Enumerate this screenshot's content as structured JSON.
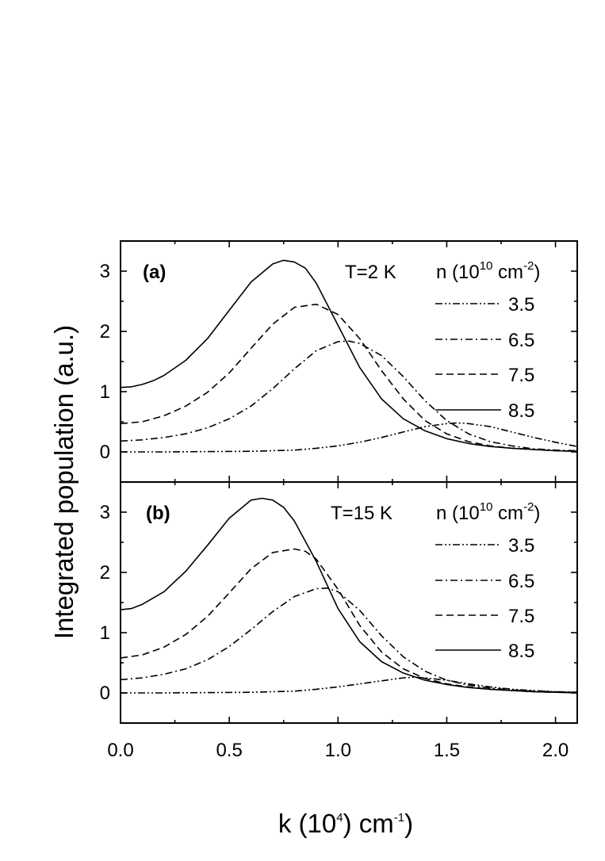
{
  "chart_data": [
    {
      "type": "line",
      "panel_label": "(a)",
      "temperature_label": "T=2 K",
      "legend_title": {
        "base": "n (10",
        "exp1": "10",
        "mid": " cm",
        "exp2": "-2",
        "end": ")"
      },
      "xlim": [
        0.0,
        2.1
      ],
      "ylim": [
        -0.5,
        3.5
      ],
      "series": [
        {
          "name": "3.5",
          "style": "dash-dot-dot",
          "x": [
            0.0,
            0.2,
            0.4,
            0.6,
            0.8,
            0.9,
            1.0,
            1.1,
            1.2,
            1.3,
            1.4,
            1.5,
            1.55,
            1.6,
            1.7,
            1.8,
            1.9,
            2.0,
            2.1
          ],
          "y": [
            0.0,
            0.0,
            0.005,
            0.01,
            0.03,
            0.06,
            0.1,
            0.16,
            0.24,
            0.33,
            0.42,
            0.47,
            0.48,
            0.47,
            0.42,
            0.33,
            0.24,
            0.16,
            0.09
          ]
        },
        {
          "name": "6.5",
          "style": "dash-dot",
          "x": [
            0.0,
            0.1,
            0.2,
            0.3,
            0.4,
            0.5,
            0.6,
            0.7,
            0.8,
            0.9,
            1.0,
            1.05,
            1.1,
            1.2,
            1.3,
            1.4,
            1.5,
            1.6,
            1.7,
            1.8,
            1.9,
            2.0,
            2.1
          ],
          "y": [
            0.18,
            0.2,
            0.24,
            0.3,
            0.4,
            0.55,
            0.76,
            1.05,
            1.38,
            1.68,
            1.83,
            1.84,
            1.8,
            1.6,
            1.25,
            0.85,
            0.52,
            0.3,
            0.17,
            0.1,
            0.05,
            0.03,
            0.02
          ]
        },
        {
          "name": "7.5",
          "style": "dash",
          "x": [
            0.0,
            0.1,
            0.2,
            0.3,
            0.4,
            0.5,
            0.6,
            0.7,
            0.8,
            0.9,
            1.0,
            1.1,
            1.2,
            1.3,
            1.4,
            1.5,
            1.6,
            1.7,
            1.8,
            1.9,
            2.0,
            2.1
          ],
          "y": [
            0.47,
            0.5,
            0.6,
            0.76,
            0.99,
            1.31,
            1.72,
            2.12,
            2.4,
            2.45,
            2.28,
            1.88,
            1.35,
            0.88,
            0.52,
            0.3,
            0.17,
            0.1,
            0.06,
            0.04,
            0.02,
            0.01
          ]
        },
        {
          "name": "8.5",
          "style": "solid",
          "x": [
            0.0,
            0.05,
            0.1,
            0.15,
            0.2,
            0.3,
            0.4,
            0.5,
            0.6,
            0.7,
            0.75,
            0.8,
            0.85,
            0.9,
            1.0,
            1.1,
            1.2,
            1.3,
            1.4,
            1.5,
            1.6,
            1.7,
            1.8,
            1.9,
            2.0,
            2.1
          ],
          "y": [
            1.07,
            1.08,
            1.12,
            1.18,
            1.27,
            1.52,
            1.88,
            2.35,
            2.82,
            3.12,
            3.18,
            3.15,
            3.05,
            2.8,
            2.1,
            1.4,
            0.88,
            0.55,
            0.35,
            0.22,
            0.14,
            0.09,
            0.06,
            0.04,
            0.02,
            0.01
          ]
        }
      ],
      "y_ticks": [
        0,
        1,
        2,
        3
      ]
    },
    {
      "type": "line",
      "panel_label": "(b)",
      "temperature_label": "T=15 K",
      "legend_title": {
        "base": "n (10",
        "exp1": "10",
        "mid": " cm",
        "exp2": "-2",
        "end": ")"
      },
      "xlim": [
        0.0,
        2.1
      ],
      "ylim": [
        -0.5,
        3.5
      ],
      "series": [
        {
          "name": "3.5",
          "style": "dash-dot-dot",
          "x": [
            0.0,
            0.2,
            0.4,
            0.6,
            0.8,
            0.9,
            1.0,
            1.1,
            1.2,
            1.3,
            1.35,
            1.4,
            1.5,
            1.6,
            1.7,
            1.8,
            1.9,
            2.0,
            2.1
          ],
          "y": [
            0.0,
            0.0,
            0.005,
            0.01,
            0.03,
            0.06,
            0.1,
            0.15,
            0.2,
            0.25,
            0.26,
            0.25,
            0.21,
            0.15,
            0.1,
            0.06,
            0.04,
            0.02,
            0.01
          ]
        },
        {
          "name": "6.5",
          "style": "dash-dot",
          "x": [
            0.0,
            0.1,
            0.2,
            0.3,
            0.4,
            0.5,
            0.6,
            0.7,
            0.8,
            0.9,
            0.95,
            1.0,
            1.1,
            1.2,
            1.3,
            1.4,
            1.5,
            1.6,
            1.7,
            1.8,
            1.9,
            2.0,
            2.1
          ],
          "y": [
            0.22,
            0.25,
            0.31,
            0.4,
            0.55,
            0.77,
            1.05,
            1.35,
            1.6,
            1.73,
            1.74,
            1.68,
            1.37,
            0.95,
            0.6,
            0.36,
            0.21,
            0.13,
            0.08,
            0.05,
            0.03,
            0.02,
            0.01
          ]
        },
        {
          "name": "7.5",
          "style": "dash",
          "x": [
            0.0,
            0.1,
            0.2,
            0.3,
            0.4,
            0.5,
            0.6,
            0.7,
            0.8,
            0.85,
            0.9,
            1.0,
            1.1,
            1.2,
            1.3,
            1.4,
            1.5,
            1.6,
            1.7,
            1.8,
            1.9,
            2.0,
            2.1
          ],
          "y": [
            0.58,
            0.63,
            0.76,
            0.97,
            1.27,
            1.66,
            2.06,
            2.33,
            2.39,
            2.35,
            2.22,
            1.72,
            1.12,
            0.68,
            0.4,
            0.24,
            0.15,
            0.1,
            0.06,
            0.04,
            0.02,
            0.01,
            0.01
          ]
        },
        {
          "name": "8.5",
          "style": "solid",
          "x": [
            0.0,
            0.05,
            0.1,
            0.2,
            0.3,
            0.4,
            0.5,
            0.6,
            0.65,
            0.7,
            0.75,
            0.8,
            0.9,
            1.0,
            1.1,
            1.2,
            1.3,
            1.4,
            1.5,
            1.6,
            1.7,
            1.8,
            1.9,
            2.0,
            2.1
          ],
          "y": [
            1.38,
            1.4,
            1.47,
            1.68,
            2.02,
            2.45,
            2.9,
            3.2,
            3.23,
            3.2,
            3.08,
            2.85,
            2.18,
            1.4,
            0.85,
            0.52,
            0.33,
            0.21,
            0.14,
            0.09,
            0.06,
            0.04,
            0.02,
            0.01,
            0.0
          ]
        }
      ],
      "y_ticks": [
        0,
        1,
        2,
        3
      ]
    }
  ],
  "axes": {
    "y_title": "Integrated population (a.u.)",
    "x_title": {
      "base": "k (10",
      "exp1": "4",
      "mid": ") cm",
      "exp2": "-1",
      "end": ")"
    },
    "x_ticks": [
      "0.0",
      "0.5",
      "1.0",
      "1.5",
      "2.0"
    ],
    "x_tick_values": [
      0.0,
      0.5,
      1.0,
      1.5,
      2.0
    ]
  }
}
